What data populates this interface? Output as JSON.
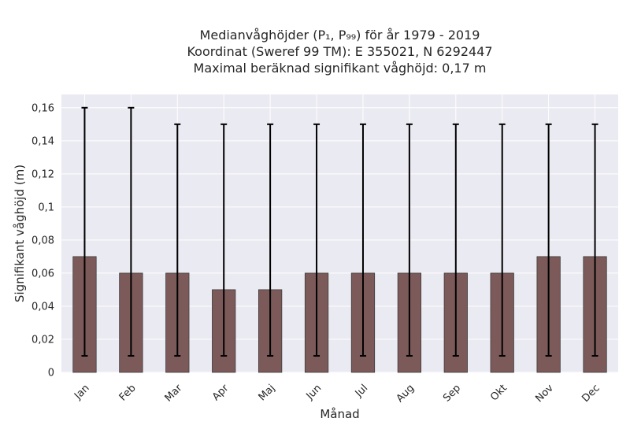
{
  "chart_data": {
    "type": "bar",
    "title_lines": [
      "Medianvåghöjder (P₁, P₉₉) för år 1979 - 2019",
      "Koordinat (Sweref 99 TM): E 355021, N 6292447",
      "Maximal beräknad signifikant våghöjd: 0,17 m"
    ],
    "xlabel": "Månad",
    "ylabel": "Signifikant våghöjd (m)",
    "categories": [
      "Jan",
      "Feb",
      "Mar",
      "Apr",
      "Maj",
      "Jun",
      "Jul",
      "Aug",
      "Sep",
      "Okt",
      "Nov",
      "Dec"
    ],
    "values": [
      0.07,
      0.06,
      0.06,
      0.05,
      0.05,
      0.06,
      0.06,
      0.06,
      0.06,
      0.06,
      0.07,
      0.07
    ],
    "error_low": [
      0.01,
      0.01,
      0.01,
      0.01,
      0.01,
      0.01,
      0.01,
      0.01,
      0.01,
      0.01,
      0.01,
      0.01
    ],
    "error_high": [
      0.16,
      0.16,
      0.15,
      0.15,
      0.15,
      0.15,
      0.15,
      0.15,
      0.15,
      0.15,
      0.15,
      0.15
    ],
    "ylim": [
      0,
      0.168
    ],
    "yticks": [
      0,
      0.02,
      0.04,
      0.06,
      0.08,
      0.1,
      0.12,
      0.14,
      0.16
    ],
    "ytick_labels": [
      "0",
      "0,02",
      "0,04",
      "0,06",
      "0,08",
      "0,1",
      "0,12",
      "0,14",
      "0,16"
    ],
    "grid": true,
    "colors": {
      "bar_fill": "#7d5a5a",
      "bar_edge": "#3c3c3c",
      "errorbar": "#000000",
      "plot_background": "#eaeaf2",
      "grid": "#ffffff"
    }
  }
}
